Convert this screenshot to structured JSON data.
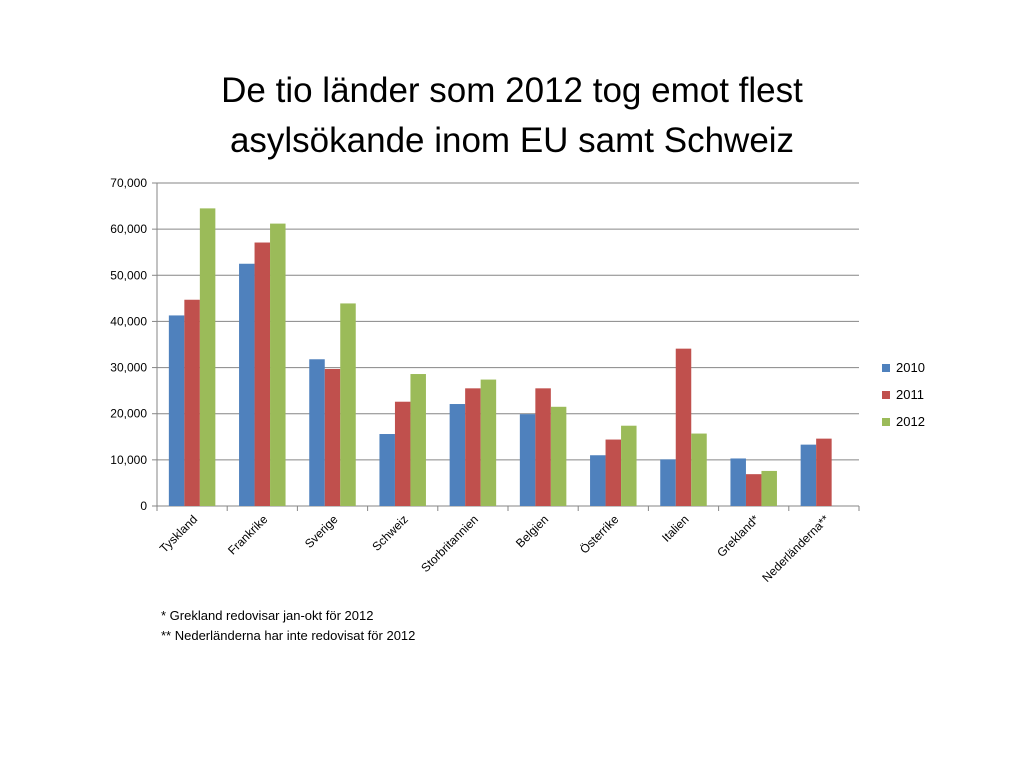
{
  "chart_data": {
    "type": "bar",
    "title": "De tio länder som 2012 tog emot flest asylsökande inom EU samt Schweiz",
    "title_lines": [
      "De tio länder som 2012 tog emot flest",
      "asylsökande inom EU samt Schweiz"
    ],
    "categories": [
      "Tyskland",
      "Frankrike",
      "Sverige",
      "Schweiz",
      "Storbritannien",
      "Belgien",
      "Österrike",
      "Italien",
      "Grekland*",
      "Nederländerna**"
    ],
    "series": [
      {
        "name": "2010",
        "color": "#4F81BD",
        "values": [
          41300,
          52500,
          31800,
          15600,
          22100,
          19900,
          11000,
          10100,
          10300,
          13300
        ]
      },
      {
        "name": "2011",
        "color": "#C0504D",
        "values": [
          44700,
          57100,
          29700,
          22600,
          25500,
          25500,
          14400,
          34100,
          6900,
          14600
        ]
      },
      {
        "name": "2012",
        "color": "#9BBB59",
        "values": [
          64500,
          61200,
          43900,
          28600,
          27400,
          21500,
          17400,
          15700,
          7600,
          null
        ]
      }
    ],
    "yticks": [
      "0",
      "10,000",
      "20,000",
      "30,000",
      "40,000",
      "50,000",
      "60,000",
      "70,000"
    ],
    "ylim": [
      0,
      70000
    ],
    "xlabel": "",
    "ylabel": "",
    "grid": true,
    "legend_position": "right"
  },
  "footnotes": [
    "* Grekland redovisar jan-okt för 2012",
    "** Nederländerna har inte redovisat för 2012"
  ]
}
